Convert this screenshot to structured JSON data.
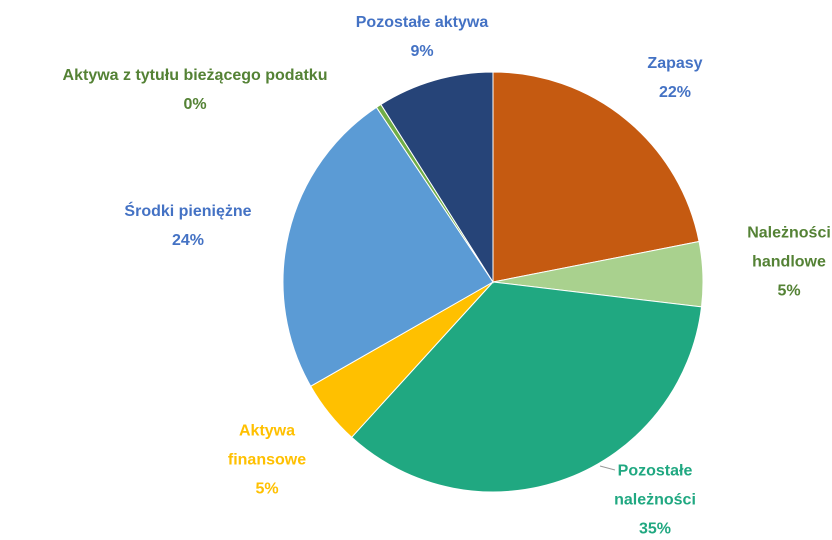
{
  "chart_data": {
    "type": "pie",
    "categories": [
      "Zapasy",
      "Należności handlowe",
      "Pozostałe należności",
      "Aktywa finansowe",
      "Środki pieniężne",
      "Aktywa z tytułu bieżącego podatku",
      "Pozostałe aktywa"
    ],
    "values": [
      22,
      5,
      35,
      5,
      24,
      0.4,
      9
    ],
    "value_labels": [
      "22%",
      "5%",
      "35%",
      "5%",
      "24%",
      "0%",
      "9%"
    ],
    "colors": [
      "#c55a11",
      "#a9d18e",
      "#20a881",
      "#ffc000",
      "#5b9bd5",
      "#70ad47",
      "#264478"
    ],
    "label_colors": [
      "#4472c4",
      "#548235",
      "#20a881",
      "#ffc000",
      "#4472c4",
      "#548235",
      "#4472c4"
    ]
  }
}
